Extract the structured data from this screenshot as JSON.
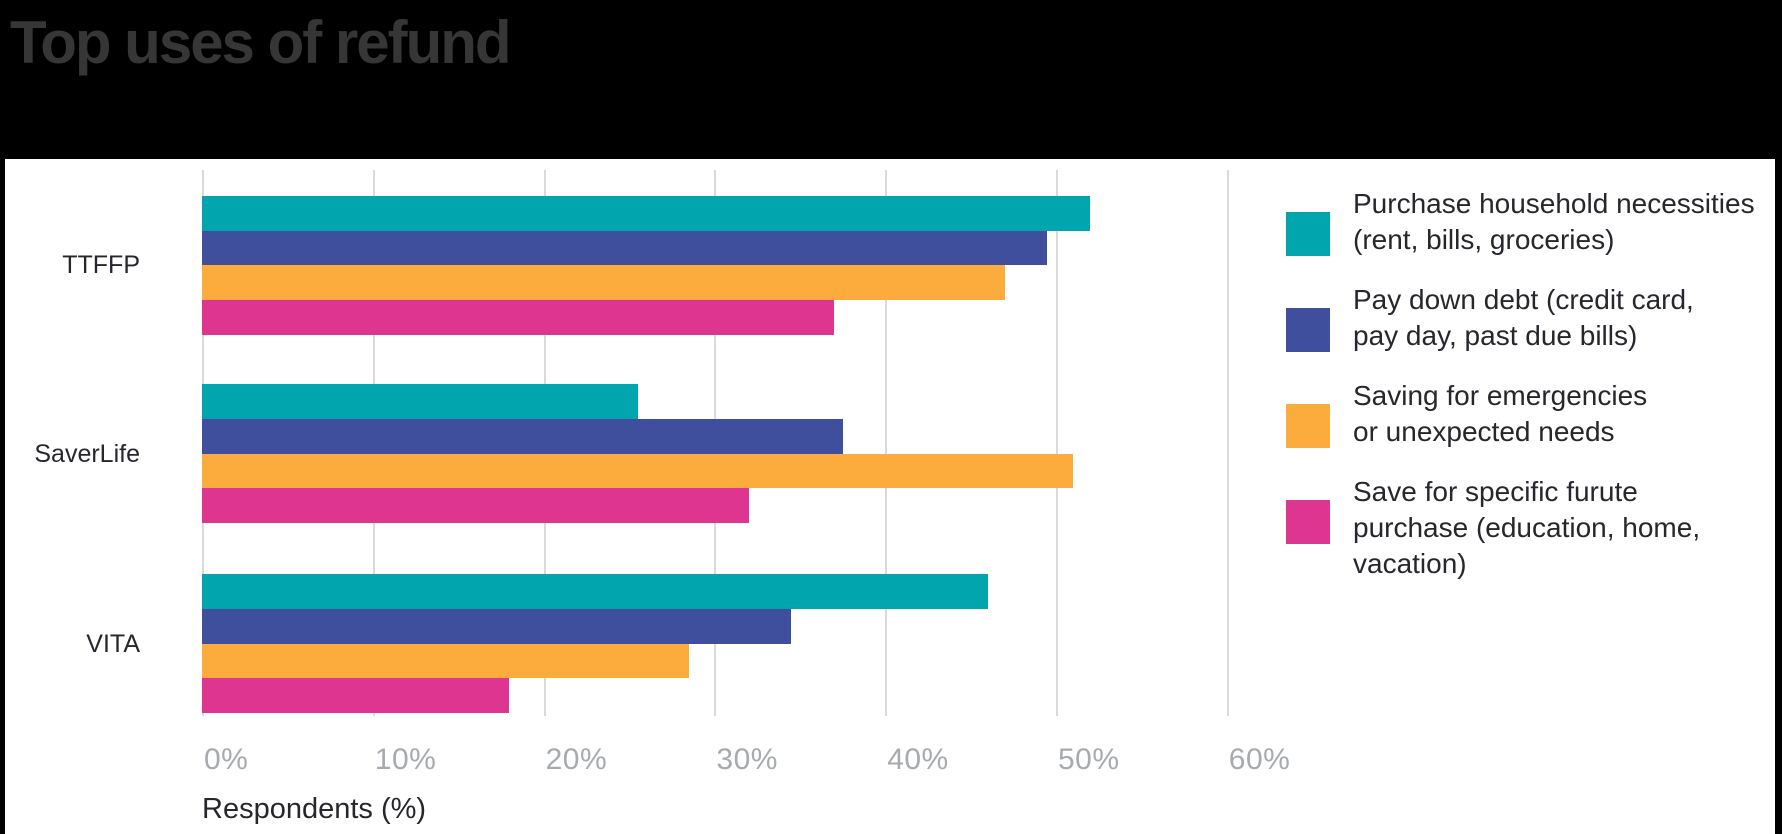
{
  "title": "Top uses of refund",
  "chart_data": {
    "type": "bar",
    "orientation": "horizontal",
    "title": "Top uses of refund",
    "xlabel": "Respondents (%)",
    "ylabel": "",
    "xlim": [
      0,
      60
    ],
    "x_ticks": [
      "0%",
      "10%",
      "20%",
      "30%",
      "40%",
      "50%",
      "60%"
    ],
    "x_tick_values": [
      0,
      10,
      20,
      30,
      40,
      50,
      60
    ],
    "grid": "vertical",
    "legend_position": "right",
    "background_color": "#000000",
    "panel_color": "#ffffff",
    "tick_color": "#a7abaf",
    "gridline_color": "#dadada",
    "categories": [
      "TTFFP",
      "SaverLife",
      "VITA"
    ],
    "series": [
      {
        "name": "Purchase household necessities (rent, bills, groceries)",
        "color": "#00a5ad",
        "values": [
          52,
          25.5,
          46
        ]
      },
      {
        "name": "Pay down debt (credit card, pay day, past due bills)",
        "color": "#3f4f9d",
        "values": [
          49.5,
          37.5,
          34.5
        ]
      },
      {
        "name": "Saving for emergencies or unexpected needs",
        "color": "#fbac3d",
        "values": [
          47,
          51,
          28.5
        ]
      },
      {
        "name": "Save for specific furute purchase (education, home, vacation)",
        "color": "#de3590",
        "values": [
          37,
          32,
          18
        ]
      }
    ],
    "legend_lines": [
      [
        "Purchase household necessities",
        "(rent, bills, groceries)"
      ],
      [
        "Pay down debt (credit card,",
        "pay day, past due bills)"
      ],
      [
        "Saving for emergencies",
        "or unexpected needs"
      ],
      [
        "Save for specific furute",
        "purchase (education, home,",
        "vacation)"
      ]
    ]
  }
}
